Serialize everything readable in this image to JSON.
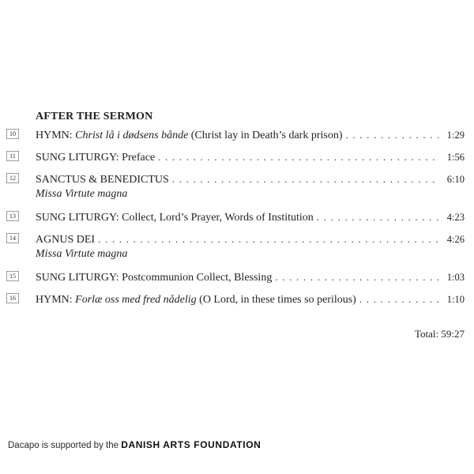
{
  "section": {
    "heading": "AFTER THE SERMON"
  },
  "tracks": [
    {
      "number": "10",
      "prefix": "HYMN: ",
      "italic": "Christ lå i dødsens bånde",
      "suffix": " (Christ lay in Death’s dark prison)",
      "time": "1:29"
    },
    {
      "number": "11",
      "prefix": "SUNG LITURGY: Preface",
      "time": "1:56"
    },
    {
      "number": "12",
      "prefix": "SANCTUS & BENEDICTUS ",
      "time": "6:10",
      "subtitle": "Missa Virtute magna"
    },
    {
      "number": "13",
      "prefix": "SUNG LITURGY: Collect, Lord’s Prayer, Words of Institution",
      "time": "4:23"
    },
    {
      "number": "14",
      "prefix": "AGNUS DEI",
      "time": "4:26",
      "subtitle": "Missa Virtute magna"
    },
    {
      "number": "15",
      "prefix": "SUNG LITURGY: Postcommunion Collect, Blessing ",
      "time": "1:03"
    },
    {
      "number": "16",
      "prefix": "HYMN: ",
      "italic": "Forlæ oss med fred nådelig",
      "suffix": " (O Lord, in these times so perilous)",
      "time": "1:10"
    }
  ],
  "total": {
    "label": "Total:",
    "value": "59:27"
  },
  "footer": {
    "text": "Dacapo is supported by the ",
    "brand": "DANISH ARTS FOUNDATION"
  }
}
